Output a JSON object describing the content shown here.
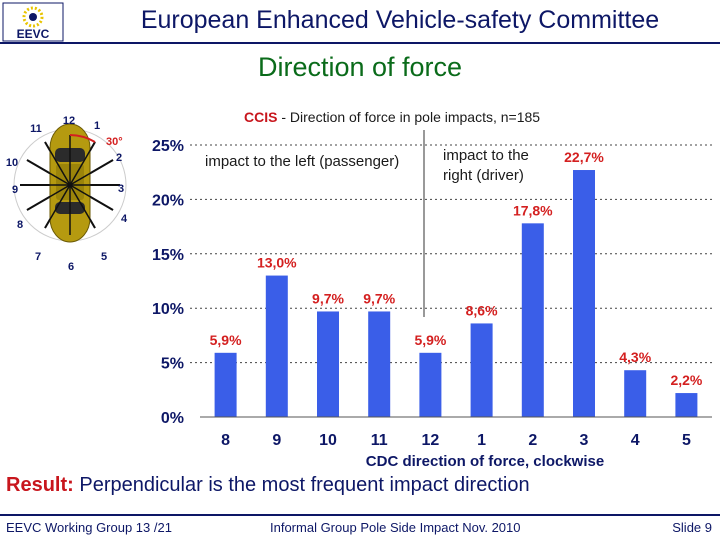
{
  "header": {
    "logo_text": "EEVC",
    "title": "European Enhanced Vehicle-safety Committee"
  },
  "slide_title": "Direction of force",
  "chart_data": {
    "type": "bar",
    "title_prefix": "CCIS",
    "title_rest": " - Direction of force in pole impacts, n=185",
    "categories": [
      "8",
      "9",
      "10",
      "11",
      "12",
      "1",
      "2",
      "3",
      "4",
      "5"
    ],
    "values": [
      5.9,
      13.0,
      9.7,
      9.7,
      5.9,
      8.6,
      17.8,
      22.7,
      4.3,
      2.2
    ],
    "value_labels": [
      "5,9%",
      "13,0%",
      "9,7%",
      "9,7%",
      "5,9%",
      "8,6%",
      "17,8%",
      "22,7%",
      "4,3%",
      "2,2%"
    ],
    "ylim": [
      0,
      25
    ],
    "yticks": [
      "0%",
      "5%",
      "10%",
      "15%",
      "20%",
      "25%"
    ],
    "xlabel": "CDC direction of force, clockwise",
    "ylabel": "",
    "bar_color": "#3a5ee8",
    "label_color": "#d42020",
    "annotations": {
      "left_line": "impact to the left (passenger)",
      "right_line1": "impact to the",
      "right_line2": "right (driver)"
    },
    "clock_labels": [
      "12",
      "1",
      "2",
      "3",
      "4",
      "5",
      "6",
      "7",
      "8",
      "9",
      "10",
      "11"
    ],
    "angle_label": "30°"
  },
  "result": {
    "label": "Result:",
    "text": " Perpendicular is the most frequent impact direction"
  },
  "footer": {
    "left": "EEVC Working Group 13 /21",
    "center": "Informal Group Pole Side Impact Nov. 2010",
    "right": "Slide 9"
  }
}
